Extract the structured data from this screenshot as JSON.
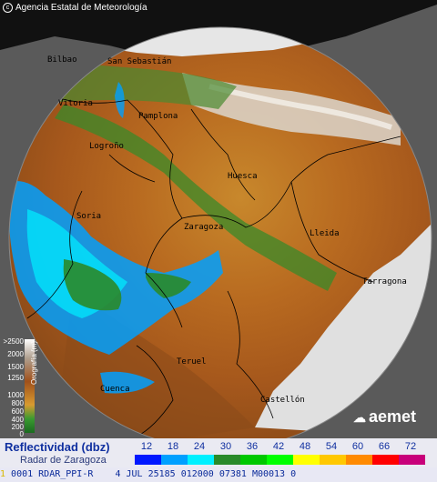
{
  "header": {
    "agency": "Agencia Estatal de Meteorología",
    "copyright_symbol": "c"
  },
  "cities": [
    {
      "name": "Vitoria"
    },
    {
      "name": "San Sebastián"
    },
    {
      "name": "Bilbao"
    },
    {
      "name": "Pamplona"
    },
    {
      "name": "Logroño"
    },
    {
      "name": "Huesca"
    },
    {
      "name": "Soria"
    },
    {
      "name": "Zaragoza"
    },
    {
      "name": "Lleida"
    },
    {
      "name": "Tarragona"
    },
    {
      "name": "Teruel"
    },
    {
      "name": "Cuenca"
    },
    {
      "name": "Castellón"
    }
  ],
  "altitude_legend": {
    "title": "Orografía (m)",
    "labels": [
      ">2500",
      "2000",
      "1500",
      "1250",
      "1000",
      "800",
      "600",
      "400",
      "200",
      "0"
    ]
  },
  "legend": {
    "title": "Reflectividad (dbz)",
    "subtitle": "Radar de Zaragoza",
    "scale": [
      {
        "value": "12",
        "color": "#0018ff"
      },
      {
        "value": "18",
        "color": "#00a0ff"
      },
      {
        "value": "24",
        "color": "#00f0ff"
      },
      {
        "value": "30",
        "color": "#2a8a2a"
      },
      {
        "value": "36",
        "color": "#00c800"
      },
      {
        "value": "42",
        "color": "#00ff00"
      },
      {
        "value": "48",
        "color": "#ffff00"
      },
      {
        "value": "54",
        "color": "#ffc800"
      },
      {
        "value": "60",
        "color": "#ff8a00"
      },
      {
        "value": "66",
        "color": "#ff0000"
      },
      {
        "value": "72",
        "color": "#c8007a"
      }
    ]
  },
  "logo": {
    "text": "aemet"
  },
  "status": {
    "line": " 0001 RDAR_PPI-R    4 JUL 25185 012000 07381 M00013 0",
    "marker": "1"
  }
}
